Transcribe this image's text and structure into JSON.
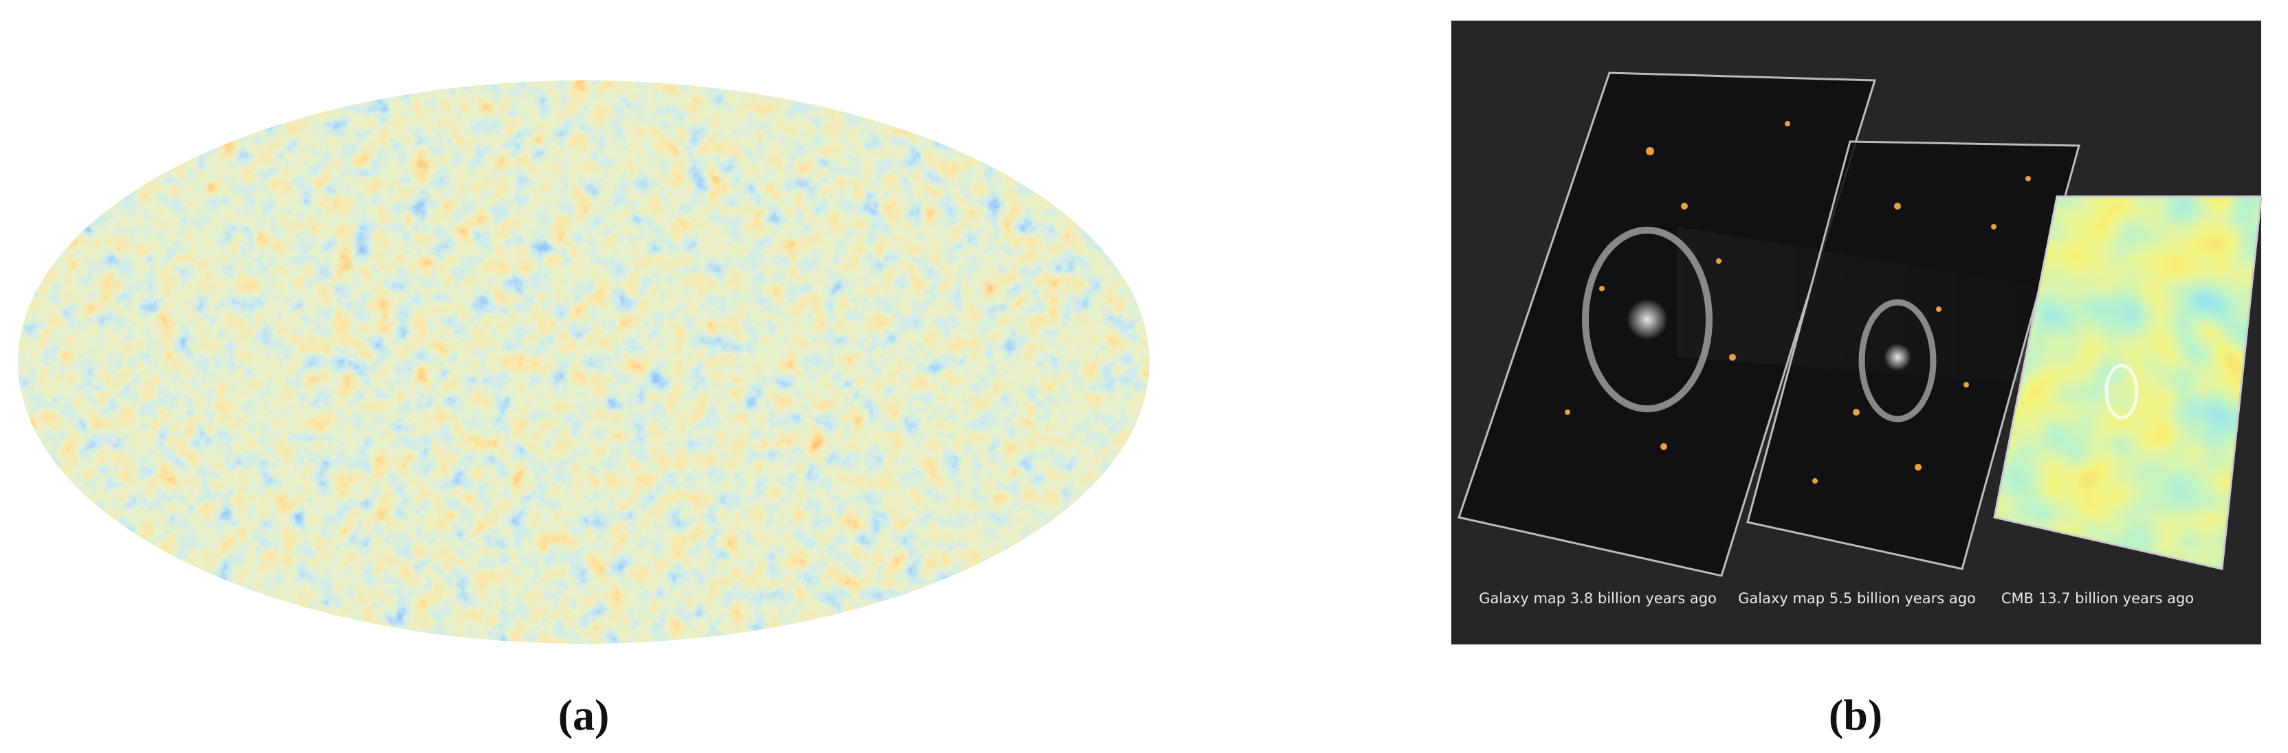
{
  "figure": {
    "panels": [
      {
        "label": "(a)"
      },
      {
        "label": "(b)",
        "captions": [
          "Galaxy map 3.8 billion years ago",
          "Galaxy map 5.5 billion years ago",
          "CMB 13.7 billion years ago"
        ]
      }
    ]
  }
}
